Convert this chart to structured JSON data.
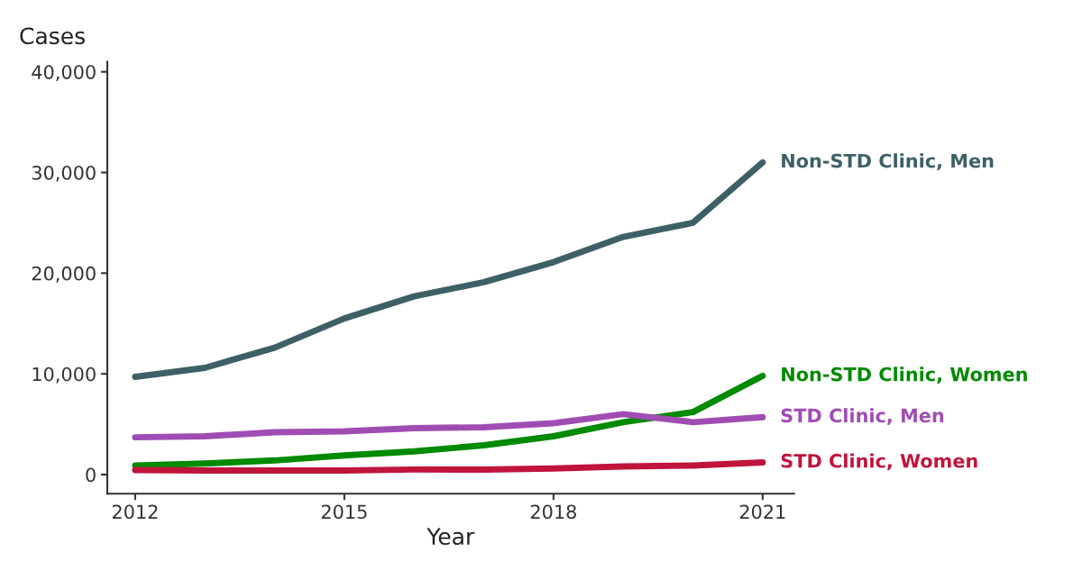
{
  "chart_data": {
    "type": "line",
    "ylabel": "Cases",
    "xlabel": "Year",
    "x": [
      2012,
      2013,
      2014,
      2015,
      2016,
      2017,
      2018,
      2019,
      2020,
      2021
    ],
    "series": [
      {
        "name": "Non-STD Clinic, Men",
        "color": "#3d6066",
        "values": [
          9700,
          10600,
          12600,
          15500,
          17700,
          19100,
          21100,
          23600,
          25000,
          31000
        ]
      },
      {
        "name": "Non-STD Clinic, Women",
        "color": "#008a00",
        "values": [
          900,
          1100,
          1400,
          1900,
          2300,
          2900,
          3800,
          5200,
          6200,
          9800
        ]
      },
      {
        "name": "STD Clinic, Men",
        "color": "#a04db3",
        "values": [
          3700,
          3800,
          4200,
          4300,
          4600,
          4700,
          5100,
          6000,
          5200,
          5700
        ]
      },
      {
        "name": "STD Clinic, Women",
        "color": "#c0143c",
        "values": [
          450,
          400,
          400,
          400,
          500,
          500,
          600,
          800,
          900,
          1200
        ]
      }
    ],
    "xlim": [
      2011.6,
      2021.45
    ],
    "xticks": [
      2012,
      2015,
      2018,
      2021
    ],
    "ylim": [
      -1900,
      41000
    ],
    "yticks": [
      0,
      {
        "value": 10000,
        "label": "10,000"
      },
      {
        "value": 20000,
        "label": "20,000"
      },
      {
        "value": 30000,
        "label": "30,000"
      },
      {
        "value": 40000,
        "label": "40,000"
      }
    ],
    "grid": false,
    "legend": false,
    "marker": "none",
    "line_style": "solid"
  }
}
